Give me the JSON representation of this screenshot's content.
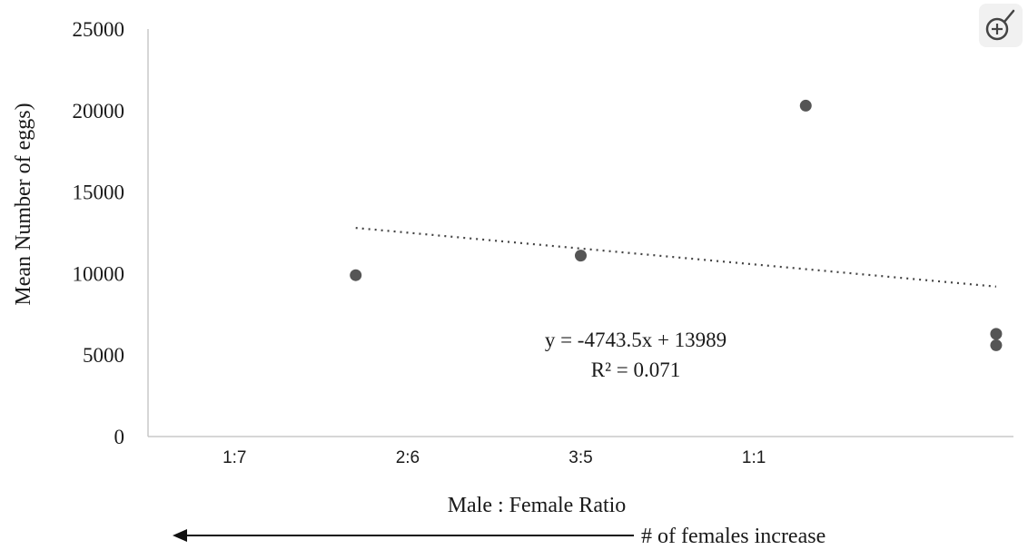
{
  "chart_data": {
    "type": "scatter",
    "title": "",
    "xlabel": "Male : Female Ratio",
    "ylabel": "Mean Number of eggs)",
    "x_categories": [
      "1:7",
      "2:6",
      "3:5",
      "1:1"
    ],
    "xlim": [
      0.5,
      5.5
    ],
    "ylim": [
      0,
      25000
    ],
    "y_ticks": [
      0,
      5000,
      10000,
      15000,
      20000,
      25000
    ],
    "y_tick_labels": [
      "0",
      "5000",
      "10000",
      "15000",
      "20000",
      "25000"
    ],
    "grid": false,
    "points": [
      {
        "x": 1.7,
        "y": 9900
      },
      {
        "x": 3.0,
        "y": 11100
      },
      {
        "x": 4.3,
        "y": 20300
      },
      {
        "x": 5.4,
        "y": 6300
      },
      {
        "x": 5.4,
        "y": 5600
      }
    ],
    "trendline": {
      "style": "dotted",
      "x_start": 1.7,
      "y_start": 12800,
      "x_end": 5.4,
      "y_end": 9200
    },
    "annotations": {
      "equation": "y = -4743.5x + 13989",
      "r_squared": "R² = 0.071",
      "arrow_label": "# of females increase",
      "arrow_direction": "left"
    },
    "marker_color": "#555555"
  },
  "ui": {
    "zoom_icon": "zoom-in-icon"
  }
}
